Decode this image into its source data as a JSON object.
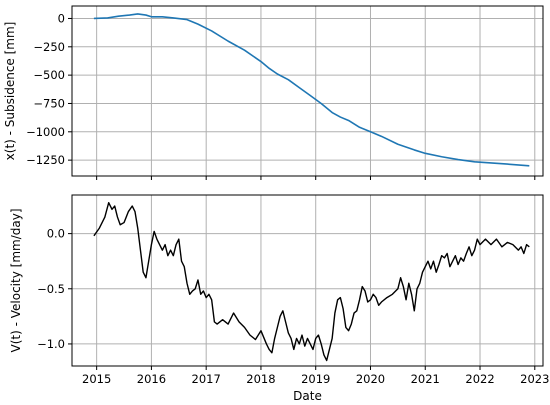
{
  "chart_data": [
    {
      "type": "line",
      "xlabel": "",
      "ylabel": "x(t) - Subsidence [mm]",
      "xlim": [
        2014.55,
        2023.15
      ],
      "ylim": [
        -1390,
        110
      ],
      "grid": true,
      "x_ticks": [
        2015,
        2016,
        2017,
        2018,
        2019,
        2020,
        2021,
        2022,
        2023
      ],
      "y_ticks": [
        0,
        -250,
        -500,
        -750,
        -1000,
        -1250
      ],
      "y_tick_labels": [
        "0",
        "−250",
        "−500",
        "−750",
        "−1000",
        "−1250"
      ],
      "series": [
        {
          "color": "#1f77b4",
          "x": [
            2014.95,
            2015.2,
            2015.4,
            2015.6,
            2015.75,
            2015.9,
            2016.0,
            2016.2,
            2016.4,
            2016.65,
            2016.85,
            2017.1,
            2017.4,
            2017.7,
            2018.0,
            2018.15,
            2018.3,
            2018.5,
            2018.7,
            2018.9,
            2019.1,
            2019.3,
            2019.45,
            2019.6,
            2019.8,
            2020.0,
            2020.2,
            2020.5,
            2020.8,
            2021.0,
            2021.3,
            2021.6,
            2021.9,
            2022.2,
            2022.5,
            2022.9
          ],
          "y": [
            0,
            5,
            20,
            30,
            40,
            30,
            15,
            15,
            5,
            -10,
            -50,
            -110,
            -200,
            -280,
            -380,
            -440,
            -490,
            -540,
            -610,
            -680,
            -750,
            -830,
            -870,
            -900,
            -960,
            -1000,
            -1040,
            -1110,
            -1160,
            -1190,
            -1220,
            -1245,
            -1265,
            -1275,
            -1285,
            -1300
          ]
        }
      ]
    },
    {
      "type": "line",
      "xlabel": "Date",
      "ylabel": "V(t) - Velocity [mm/day]",
      "xlim": [
        2014.55,
        2023.15
      ],
      "ylim": [
        -1.2,
        0.35
      ],
      "grid": true,
      "x_ticks": [
        2015,
        2016,
        2017,
        2018,
        2019,
        2020,
        2021,
        2022,
        2023
      ],
      "x_tick_labels": [
        "2015",
        "2016",
        "2017",
        "2018",
        "2019",
        "2020",
        "2021",
        "2022",
        "2023"
      ],
      "y_ticks": [
        0.0,
        -0.5,
        -1.0
      ],
      "y_tick_labels": [
        "0.0",
        "−0.5",
        "−1.0"
      ],
      "series": [
        {
          "color": "#000000",
          "x": [
            2014.95,
            2015.05,
            2015.15,
            2015.22,
            2015.28,
            2015.33,
            2015.38,
            2015.43,
            2015.5,
            2015.58,
            2015.65,
            2015.7,
            2015.75,
            2015.8,
            2015.85,
            2015.9,
            2015.95,
            2016.0,
            2016.05,
            2016.1,
            2016.15,
            2016.2,
            2016.25,
            2016.3,
            2016.35,
            2016.4,
            2016.45,
            2016.5,
            2016.55,
            2016.6,
            2016.65,
            2016.7,
            2016.75,
            2016.8,
            2016.85,
            2016.9,
            2016.95,
            2017.0,
            2017.05,
            2017.1,
            2017.15,
            2017.2,
            2017.3,
            2017.4,
            2017.5,
            2017.6,
            2017.7,
            2017.8,
            2017.9,
            2018.0,
            2018.1,
            2018.15,
            2018.2,
            2018.25,
            2018.3,
            2018.35,
            2018.4,
            2018.45,
            2018.5,
            2018.55,
            2018.6,
            2018.65,
            2018.7,
            2018.75,
            2018.8,
            2018.85,
            2018.9,
            2018.95,
            2019.0,
            2019.05,
            2019.1,
            2019.15,
            2019.2,
            2019.25,
            2019.3,
            2019.35,
            2019.4,
            2019.45,
            2019.5,
            2019.55,
            2019.6,
            2019.65,
            2019.7,
            2019.75,
            2019.8,
            2019.85,
            2019.9,
            2019.95,
            2020.0,
            2020.05,
            2020.1,
            2020.15,
            2020.2,
            2020.3,
            2020.4,
            2020.5,
            2020.55,
            2020.6,
            2020.65,
            2020.7,
            2020.75,
            2020.8,
            2020.85,
            2020.9,
            2020.95,
            2021.0,
            2021.05,
            2021.1,
            2021.15,
            2021.2,
            2021.25,
            2021.3,
            2021.35,
            2021.4,
            2021.45,
            2021.5,
            2021.55,
            2021.6,
            2021.65,
            2021.7,
            2021.75,
            2021.8,
            2021.85,
            2021.9,
            2021.95,
            2022.0,
            2022.1,
            2022.2,
            2022.3,
            2022.4,
            2022.5,
            2022.6,
            2022.7,
            2022.75,
            2022.8,
            2022.85,
            2022.9
          ],
          "y": [
            -0.02,
            0.05,
            0.15,
            0.28,
            0.22,
            0.25,
            0.15,
            0.08,
            0.1,
            0.2,
            0.25,
            0.2,
            0.05,
            -0.15,
            -0.35,
            -0.4,
            -0.25,
            -0.1,
            0.02,
            -0.05,
            -0.1,
            -0.15,
            -0.1,
            -0.2,
            -0.15,
            -0.2,
            -0.1,
            -0.05,
            -0.25,
            -0.3,
            -0.45,
            -0.55,
            -0.52,
            -0.5,
            -0.42,
            -0.55,
            -0.52,
            -0.58,
            -0.55,
            -0.6,
            -0.8,
            -0.82,
            -0.78,
            -0.82,
            -0.72,
            -0.8,
            -0.85,
            -0.92,
            -0.96,
            -0.88,
            -1.0,
            -1.05,
            -1.08,
            -0.95,
            -0.85,
            -0.75,
            -0.7,
            -0.8,
            -0.9,
            -0.95,
            -1.05,
            -0.95,
            -1.0,
            -0.92,
            -1.02,
            -0.95,
            -1.0,
            -1.05,
            -0.95,
            -0.92,
            -1.0,
            -1.1,
            -1.15,
            -1.05,
            -0.95,
            -0.72,
            -0.6,
            -0.58,
            -0.68,
            -0.85,
            -0.88,
            -0.82,
            -0.72,
            -0.7,
            -0.6,
            -0.48,
            -0.52,
            -0.62,
            -0.6,
            -0.55,
            -0.58,
            -0.65,
            -0.62,
            -0.58,
            -0.55,
            -0.5,
            -0.4,
            -0.48,
            -0.6,
            -0.45,
            -0.55,
            -0.7,
            -0.5,
            -0.45,
            -0.35,
            -0.3,
            -0.25,
            -0.32,
            -0.25,
            -0.35,
            -0.28,
            -0.2,
            -0.22,
            -0.18,
            -0.3,
            -0.25,
            -0.2,
            -0.28,
            -0.22,
            -0.25,
            -0.18,
            -0.12,
            -0.2,
            -0.15,
            -0.05,
            -0.1,
            -0.05,
            -0.1,
            -0.05,
            -0.12,
            -0.08,
            -0.1,
            -0.15,
            -0.12,
            -0.18,
            -0.1,
            -0.12
          ]
        }
      ]
    }
  ]
}
